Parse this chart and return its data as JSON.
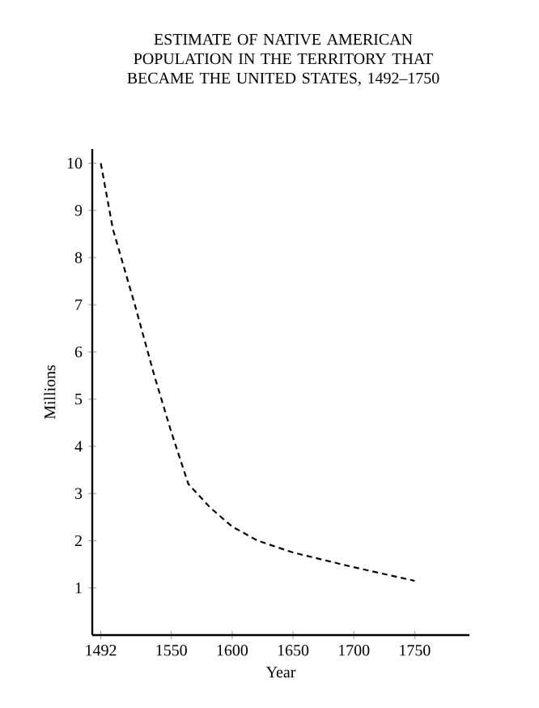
{
  "chart_data": {
    "type": "line",
    "title": "ESTIMATE OF NATIVE AMERICAN POPULATION IN THE TERRITORY THAT BECAME THE UNITED STATES, 1492–1750",
    "xlabel": "Year",
    "ylabel": "Millions",
    "x": [
      1492,
      1502,
      1520,
      1536,
      1550,
      1564,
      1582,
      1600,
      1621,
      1650,
      1698,
      1750
    ],
    "values": [
      10,
      8.6,
      7,
      5.5,
      4.3,
      3.2,
      2.7,
      2.3,
      2.0,
      1.75,
      1.45,
      1.15
    ],
    "color": "#000000",
    "line_style": "dashed",
    "marker": "none",
    "grid": false,
    "xlim": [
      1485,
      1795
    ],
    "ylim": [
      0,
      10.3
    ],
    "xticks": [
      1492,
      1550,
      1600,
      1650,
      1700,
      1750
    ],
    "yticks": [
      1,
      2,
      3,
      4,
      5,
      6,
      7,
      8,
      9,
      10
    ]
  }
}
